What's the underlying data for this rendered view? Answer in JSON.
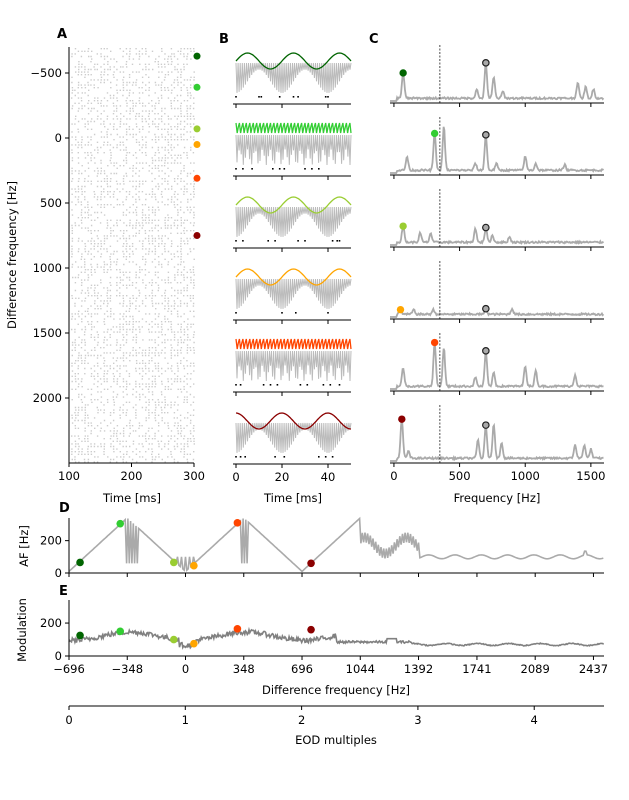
{
  "colors": {
    "markers": [
      "#006400",
      "#32cd32",
      "#9acd32",
      "#ffa500",
      "#ff4500",
      "#8b0000"
    ],
    "trace": "#aaaaaa",
    "modulation_trace": "#808080",
    "raster": "#cccccc",
    "open_marker_fill": "#aaaaaa"
  },
  "chart_data": [
    {
      "panel": "A",
      "type": "scatter",
      "title": "",
      "xlabel": "Time [ms]",
      "ylabel": "Difference frequency [Hz]",
      "xlim": [
        100,
        300
      ],
      "ylim": [
        2500,
        -700
      ],
      "xticks": [
        100,
        200,
        300
      ],
      "yticks": [
        -500,
        0,
        500,
        1000,
        1500,
        2000
      ],
      "ytick_labels": [
        "−500",
        "0",
        "500",
        "1000",
        "1500",
        "2000"
      ],
      "description": "spike raster for each difference frequency",
      "marked_df": [
        -630,
        -390,
        -70,
        50,
        310,
        750
      ]
    },
    {
      "panel": "B",
      "type": "line",
      "xlabel": "Time [ms]",
      "xlim": [
        0,
        50
      ],
      "xticks": [
        0,
        20,
        40
      ],
      "rows": [
        {
          "df": -630,
          "envelope": "slow",
          "spikes_ms": [
            0,
            10,
            11,
            19,
            25,
            27,
            39,
            40
          ]
        },
        {
          "df": -390,
          "envelope": "fast",
          "spikes_ms": [
            0,
            3,
            7,
            16,
            19,
            21,
            30,
            33,
            36
          ]
        },
        {
          "df": -70,
          "envelope": "slow",
          "spikes_ms": [
            0,
            3,
            14,
            17,
            27,
            30,
            42,
            44,
            45
          ]
        },
        {
          "df": 50,
          "envelope": "slow",
          "spikes_ms": [
            0,
            20,
            26,
            40
          ]
        },
        {
          "df": 310,
          "envelope": "fast",
          "spikes_ms": [
            0,
            2,
            12,
            15,
            18,
            28,
            31,
            38,
            41,
            45
          ]
        },
        {
          "df": 750,
          "envelope": "slow",
          "spikes_ms": [
            0,
            2,
            4,
            17,
            21,
            36,
            39,
            42
          ]
        }
      ]
    },
    {
      "panel": "C",
      "type": "line",
      "xlabel": "Frequency [Hz]",
      "xlim": [
        -30,
        1600
      ],
      "xticks": [
        0,
        500,
        1000,
        1500
      ],
      "dashed_line_hz": 350,
      "open_marker_hz": 700,
      "rows": [
        {
          "df_marker_hz": 70,
          "peaks": [
            [
              70,
              0.55
            ],
            [
              700,
              0.75
            ],
            [
              760,
              0.45
            ],
            [
              630,
              0.2
            ],
            [
              830,
              0.15
            ],
            [
              1400,
              0.35
            ],
            [
              1460,
              0.25
            ],
            [
              1520,
              0.2
            ]
          ]
        },
        {
          "df_marker_hz": 310,
          "peaks": [
            [
              100,
              0.3
            ],
            [
              310,
              0.8
            ],
            [
              380,
              0.95
            ],
            [
              620,
              0.15
            ],
            [
              700,
              0.75
            ],
            [
              780,
              0.15
            ],
            [
              1000,
              0.3
            ],
            [
              1080,
              0.15
            ],
            [
              1300,
              0.12
            ]
          ]
        },
        {
          "df_marker_hz": 70,
          "peaks": [
            [
              70,
              0.35
            ],
            [
              200,
              0.2
            ],
            [
              280,
              0.2
            ],
            [
              620,
              0.3
            ],
            [
              700,
              0.3
            ],
            [
              750,
              0.15
            ],
            [
              880,
              0.12
            ]
          ]
        },
        {
          "df_marker_hz": 50,
          "peaks": [
            [
              50,
              0.1
            ],
            [
              150,
              0.1
            ],
            [
              300,
              0.1
            ],
            [
              700,
              0.1
            ],
            [
              900,
              0.12
            ]
          ]
        },
        {
          "df_marker_hz": 310,
          "peaks": [
            [
              70,
              0.4
            ],
            [
              310,
              0.95
            ],
            [
              380,
              0.85
            ],
            [
              620,
              0.2
            ],
            [
              700,
              0.75
            ],
            [
              760,
              0.3
            ],
            [
              1000,
              0.45
            ],
            [
              1080,
              0.35
            ],
            [
              1380,
              0.25
            ]
          ]
        },
        {
          "df_marker_hz": 60,
          "peaks": [
            [
              60,
              0.85
            ],
            [
              110,
              0.15
            ],
            [
              640,
              0.4
            ],
            [
              700,
              0.7
            ],
            [
              760,
              0.75
            ],
            [
              820,
              0.35
            ],
            [
              1380,
              0.3
            ],
            [
              1450,
              0.3
            ],
            [
              1500,
              0.2
            ]
          ]
        }
      ]
    },
    {
      "panel": "D",
      "type": "line",
      "xlabel": "",
      "ylabel": "AF [Hz]",
      "xlim": [
        -696,
        2500
      ],
      "ylim": [
        0,
        340
      ],
      "yticks": [
        0,
        200
      ],
      "markers": [
        {
          "x": -630,
          "y": 65
        },
        {
          "x": -390,
          "y": 305
        },
        {
          "x": -70,
          "y": 65
        },
        {
          "x": 50,
          "y": 45
        },
        {
          "x": 310,
          "y": 310
        },
        {
          "x": 750,
          "y": 60
        }
      ]
    },
    {
      "panel": "E",
      "type": "line",
      "xlabel": "Difference frequency [Hz]",
      "ylabel": "Modulation",
      "xlim": [
        -696,
        2500
      ],
      "ylim": [
        0,
        340
      ],
      "yticks": [
        0,
        200
      ],
      "xticks": [
        -696,
        -348,
        0,
        348,
        696,
        1044,
        1392,
        1741,
        2089,
        2437
      ],
      "xtick_labels": [
        "−696",
        "−348",
        "0",
        "348",
        "696",
        "1044",
        "1392",
        "1741",
        "2089",
        "2437"
      ],
      "markers": [
        {
          "x": -630,
          "y": 125
        },
        {
          "x": -390,
          "y": 150
        },
        {
          "x": -70,
          "y": 100
        },
        {
          "x": 50,
          "y": 75
        },
        {
          "x": 310,
          "y": 165
        },
        {
          "x": 750,
          "y": 160
        }
      ],
      "secondary_axis": {
        "xlabel": "EOD multiples",
        "xlim": [
          0,
          4.6
        ],
        "xticks": [
          0,
          1,
          2,
          3,
          4
        ]
      }
    }
  ],
  "labels": {
    "panelA": "A",
    "panelB": "B",
    "panelC": "C",
    "panelD": "D",
    "panelE": "E",
    "a_xlabel": "Time [ms]",
    "a_ylabel": "Difference frequency [Hz]",
    "b_xlabel": "Time [ms]",
    "c_xlabel": "Frequency [Hz]",
    "d_ylabel": "AF [Hz]",
    "e_ylabel": "Modulation",
    "e_xlabel": "Difference frequency [Hz]",
    "eod_xlabel": "EOD multiples"
  }
}
